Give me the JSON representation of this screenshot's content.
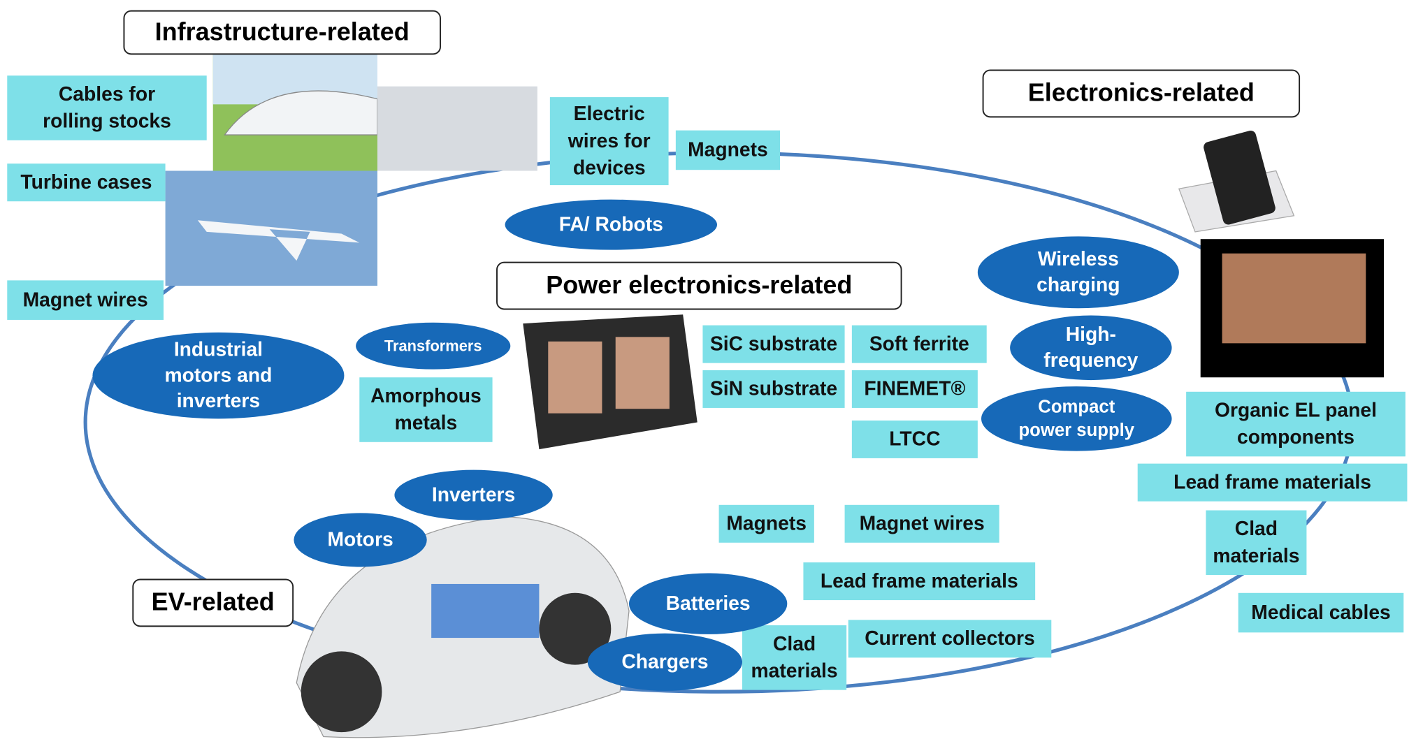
{
  "headers": [
    {
      "text": "Infrastructure-related"
    },
    {
      "text": "Electronics-related"
    },
    {
      "text": "Power electronics-related"
    },
    {
      "text": "EV-related"
    }
  ],
  "boxes": [
    {
      "lines": [
        "Cables for",
        "rolling stocks"
      ]
    },
    {
      "lines": [
        "Turbine cases"
      ]
    },
    {
      "lines": [
        "Electric",
        "wires for",
        "devices"
      ]
    },
    {
      "lines": [
        "Magnets"
      ]
    },
    {
      "lines": [
        "Magnet wires"
      ]
    },
    {
      "lines": [
        "Amorphous",
        "metals"
      ]
    },
    {
      "lines": [
        "SiC substrate"
      ]
    },
    {
      "lines": [
        "Soft ferrite"
      ]
    },
    {
      "lines": [
        "SiN substrate"
      ]
    },
    {
      "lines": [
        "FINEMET®"
      ]
    },
    {
      "lines": [
        "LTCC"
      ]
    },
    {
      "lines": [
        "Organic EL panel",
        "components"
      ]
    },
    {
      "lines": [
        "Lead frame materials"
      ]
    },
    {
      "lines": [
        "Clad",
        "materials"
      ]
    },
    {
      "lines": [
        "Medical cables"
      ]
    },
    {
      "lines": [
        "Magnets"
      ]
    },
    {
      "lines": [
        "Magnet wires"
      ]
    },
    {
      "lines": [
        "Lead frame materials"
      ]
    },
    {
      "lines": [
        "Current collectors"
      ]
    },
    {
      "lines": [
        "Clad",
        "materials"
      ]
    }
  ],
  "ellipses": [
    {
      "lines": [
        "FA/ Robots"
      ]
    },
    {
      "lines": [
        "Industrial",
        "motors and",
        "inverters"
      ]
    },
    {
      "lines": [
        "Transformers"
      ]
    },
    {
      "lines": [
        "Wireless",
        "charging"
      ]
    },
    {
      "lines": [
        "High-",
        "frequency"
      ]
    },
    {
      "lines": [
        "Compact",
        "power supply"
      ]
    },
    {
      "lines": [
        "Inverters"
      ]
    },
    {
      "lines": [
        "Motors"
      ]
    },
    {
      "lines": [
        "Batteries"
      ]
    },
    {
      "lines": [
        "Chargers"
      ]
    }
  ]
}
